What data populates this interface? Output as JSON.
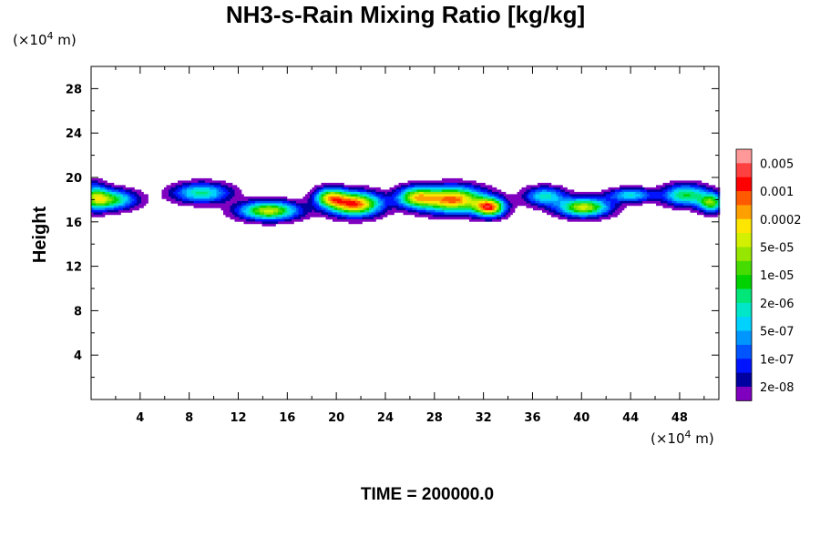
{
  "chart_data": {
    "type": "heatmap",
    "title": "NH3-s-Rain Mixing Ratio [kg/kg]",
    "xlabel": "",
    "ylabel": "Height",
    "x_unit_prefix": "(×10",
    "x_unit_exp": "4",
    "x_unit_suffix": " m)",
    "y_unit_prefix": "(×10",
    "y_unit_exp": "4",
    "y_unit_suffix": " m)",
    "xlim": [
      0,
      51.2
    ],
    "ylim": [
      0,
      30
    ],
    "x_ticks": [
      4,
      8,
      12,
      16,
      20,
      24,
      28,
      32,
      36,
      40,
      44,
      48
    ],
    "x_tick_labels": [
      "4",
      "8",
      "12",
      "16",
      "20",
      "24",
      "28",
      "32",
      "36",
      "40",
      "44",
      "48"
    ],
    "y_ticks": [
      4,
      8,
      12,
      16,
      20,
      24,
      28
    ],
    "y_tick_labels": [
      "4",
      "8",
      "12",
      "16",
      "20",
      "24",
      "28"
    ],
    "footer": "TIME = 200000.0",
    "colorbar": {
      "labels": [
        "0.005",
        "0.001",
        "0.0002",
        "5e-05",
        "1e-05",
        "2e-06",
        "5e-07",
        "1e-07",
        "2e-08"
      ],
      "colors": [
        "#ff9999",
        "#ff4040",
        "#ff0000",
        "#ff5a00",
        "#ffa000",
        "#ffe600",
        "#d2f000",
        "#96e600",
        "#46dc00",
        "#00d200",
        "#00e678",
        "#00e6c8",
        "#00d2ff",
        "#0096ff",
        "#0055ff",
        "#0014ff",
        "#0000a0",
        "#8000c0"
      ]
    },
    "blobs": [
      {
        "x": 1.5,
        "y": 18.0,
        "sx": 2.0,
        "sy": 0.85,
        "peak": 0.55
      },
      {
        "x": 0.3,
        "y": 18.3,
        "sx": 1.0,
        "sy": 1.2,
        "peak": 0.35
      },
      {
        "x": 9.0,
        "y": 18.6,
        "sx": 2.2,
        "sy": 0.85,
        "peak": 0.45
      },
      {
        "x": 14.5,
        "y": 17.0,
        "sx": 2.3,
        "sy": 0.8,
        "peak": 0.68
      },
      {
        "x": 21.5,
        "y": 17.6,
        "sx": 2.0,
        "sy": 1.0,
        "peak": 0.88
      },
      {
        "x": 19.5,
        "y": 18.2,
        "sx": 1.2,
        "sy": 0.8,
        "peak": 0.6
      },
      {
        "x": 26.5,
        "y": 18.2,
        "sx": 1.5,
        "sy": 0.9,
        "peak": 0.6
      },
      {
        "x": 29.5,
        "y": 18.0,
        "sx": 2.4,
        "sy": 1.1,
        "peak": 0.85
      },
      {
        "x": 32.5,
        "y": 17.3,
        "sx": 1.2,
        "sy": 0.8,
        "peak": 0.82
      },
      {
        "x": 37.0,
        "y": 18.3,
        "sx": 1.6,
        "sy": 0.8,
        "peak": 0.4
      },
      {
        "x": 40.2,
        "y": 17.3,
        "sx": 2.0,
        "sy": 0.8,
        "peak": 0.68
      },
      {
        "x": 44.0,
        "y": 18.4,
        "sx": 1.8,
        "sy": 0.6,
        "peak": 0.38
      },
      {
        "x": 48.5,
        "y": 18.4,
        "sx": 1.8,
        "sy": 0.9,
        "peak": 0.5
      },
      {
        "x": 50.6,
        "y": 17.7,
        "sx": 1.0,
        "sy": 0.8,
        "peak": 0.55
      }
    ]
  }
}
